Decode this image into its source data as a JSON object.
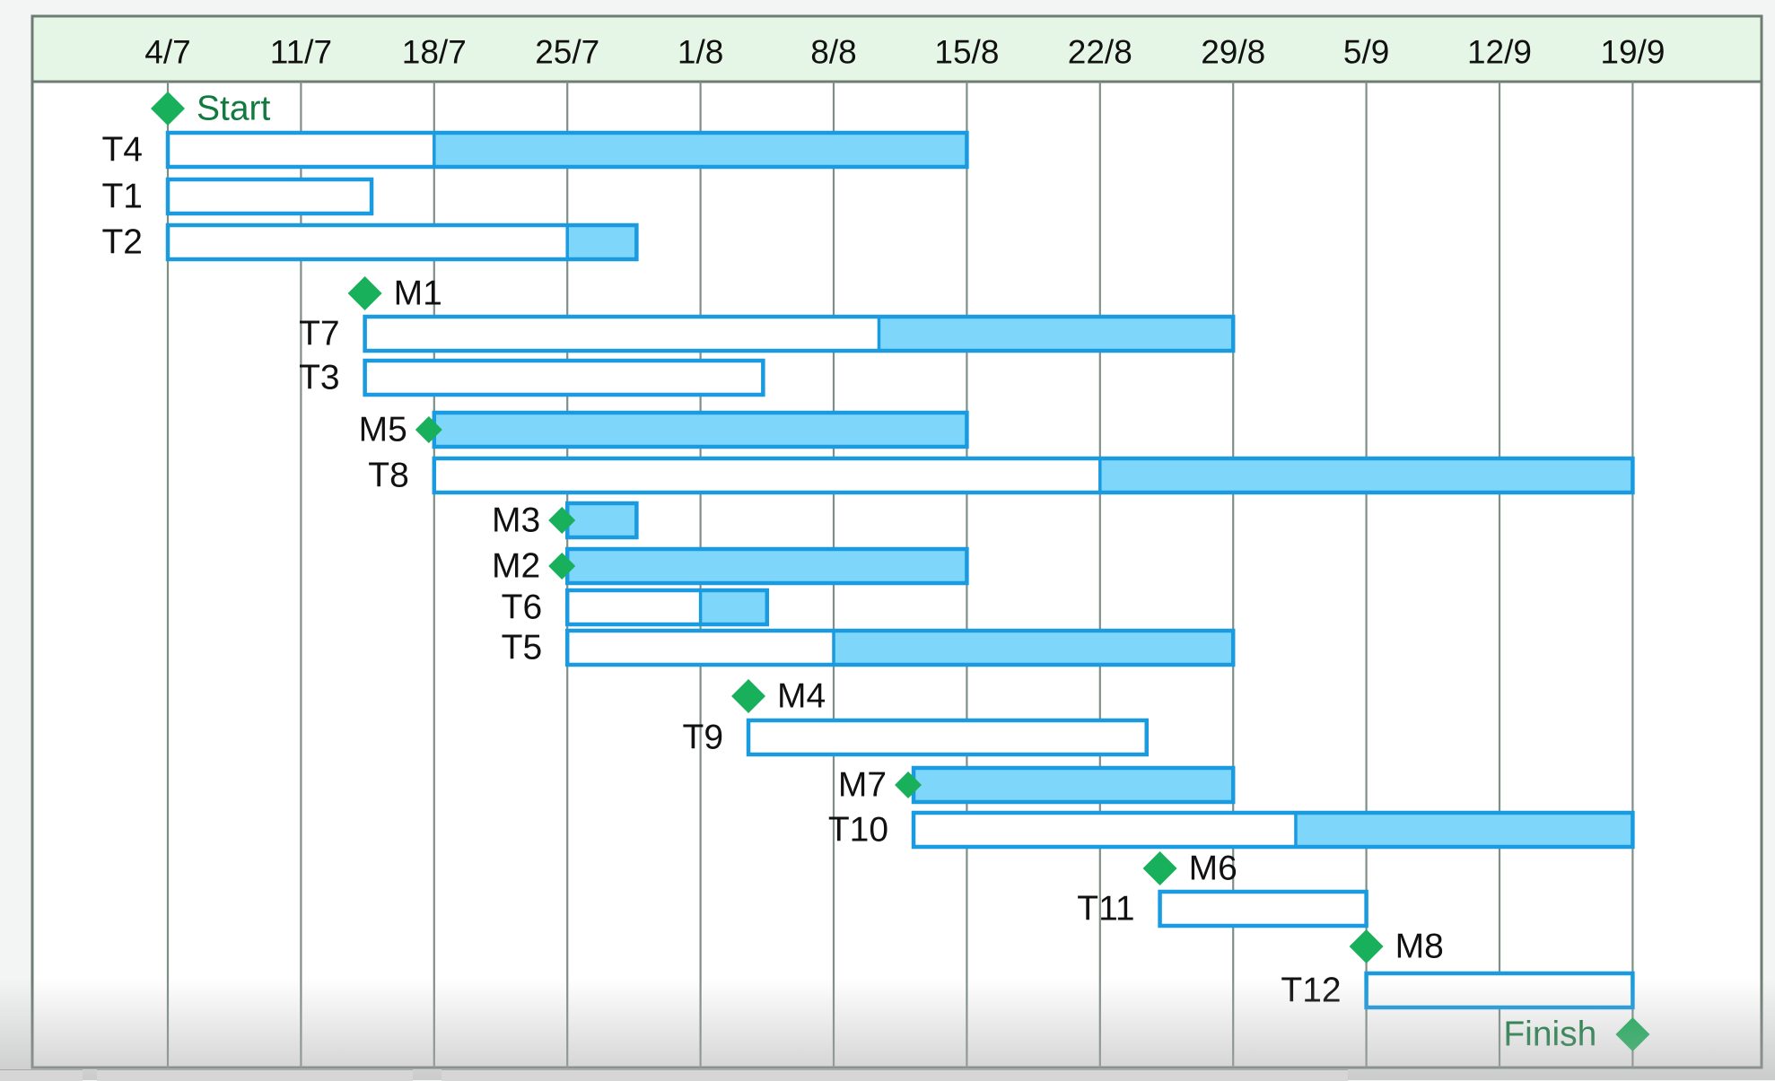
{
  "chart_data": {
    "type": "gantt",
    "x_ticks": [
      "4/7",
      "11/7",
      "18/7",
      "25/7",
      "1/8",
      "8/8",
      "15/8",
      "22/8",
      "29/8",
      "5/9",
      "12/9",
      "19/9"
    ],
    "x_range_weeks": [
      0,
      11
    ],
    "rows": [
      {
        "label": "Start",
        "kind": "milestone",
        "at": 0,
        "label_side": "right",
        "label_color": "green"
      },
      {
        "label": "T4",
        "kind": "task",
        "start": 0,
        "end": 6,
        "split": 2
      },
      {
        "label": "T1",
        "kind": "task",
        "start": 0,
        "end": 1.53,
        "split": null
      },
      {
        "label": "T2",
        "kind": "task",
        "start": 0,
        "end": 3.52,
        "split": 3
      },
      {
        "label": "M1",
        "kind": "milestone",
        "at": 1.48,
        "label_side": "right",
        "label_color": "black"
      },
      {
        "label": "T7",
        "kind": "task",
        "start": 1.48,
        "end": 8,
        "split": 5.34
      },
      {
        "label": "T3",
        "kind": "task",
        "start": 1.48,
        "end": 4.47,
        "split": null
      },
      {
        "label": "M5",
        "kind": "milestone-bar",
        "at": 2,
        "start": 2,
        "end": 6,
        "split": 2
      },
      {
        "label": "T8",
        "kind": "task",
        "start": 2,
        "end": 11,
        "split": 7
      },
      {
        "label": "M3",
        "kind": "milestone-bar",
        "at": 3,
        "start": 3,
        "end": 3.52,
        "split": 3
      },
      {
        "label": "M2",
        "kind": "milestone-bar",
        "at": 3,
        "start": 3,
        "end": 6,
        "split": 3
      },
      {
        "label": "T6",
        "kind": "task",
        "start": 3,
        "end": 4.5,
        "split": 4
      },
      {
        "label": "T5",
        "kind": "task",
        "start": 3,
        "end": 8,
        "split": 5
      },
      {
        "label": "M4",
        "kind": "milestone",
        "at": 4.36,
        "label_side": "right",
        "label_color": "black"
      },
      {
        "label": "T9",
        "kind": "task",
        "start": 4.36,
        "end": 7.35,
        "split": null
      },
      {
        "label": "M7",
        "kind": "milestone-bar",
        "at": 5.6,
        "start": 5.6,
        "end": 8,
        "split": 5.6
      },
      {
        "label": "T10",
        "kind": "task",
        "start": 5.6,
        "end": 11,
        "split": 8.47
      },
      {
        "label": "M6",
        "kind": "milestone",
        "at": 7.45,
        "label_side": "right",
        "label_color": "black"
      },
      {
        "label": "T11",
        "kind": "task",
        "start": 7.45,
        "end": 9,
        "split": null
      },
      {
        "label": "M8",
        "kind": "milestone",
        "at": 9,
        "label_side": "right",
        "label_color": "black"
      },
      {
        "label": "T12",
        "kind": "task",
        "start": 9,
        "end": 11,
        "split": null
      },
      {
        "label": "Finish",
        "kind": "milestone",
        "at": 11,
        "label_side": "left",
        "label_color": "green"
      }
    ],
    "colors": {
      "bar_outline": "#1a9be0",
      "bar_fill": "#7fd6fb",
      "bar_empty": "#ffffff",
      "milestone": "#18b05a",
      "milestone_label": "#127a3f",
      "task_label": "#111111",
      "header_bg": "#e6f6e6",
      "grid_line": "#7f8f86",
      "frame": "#6e7d74"
    },
    "grid": true
  }
}
